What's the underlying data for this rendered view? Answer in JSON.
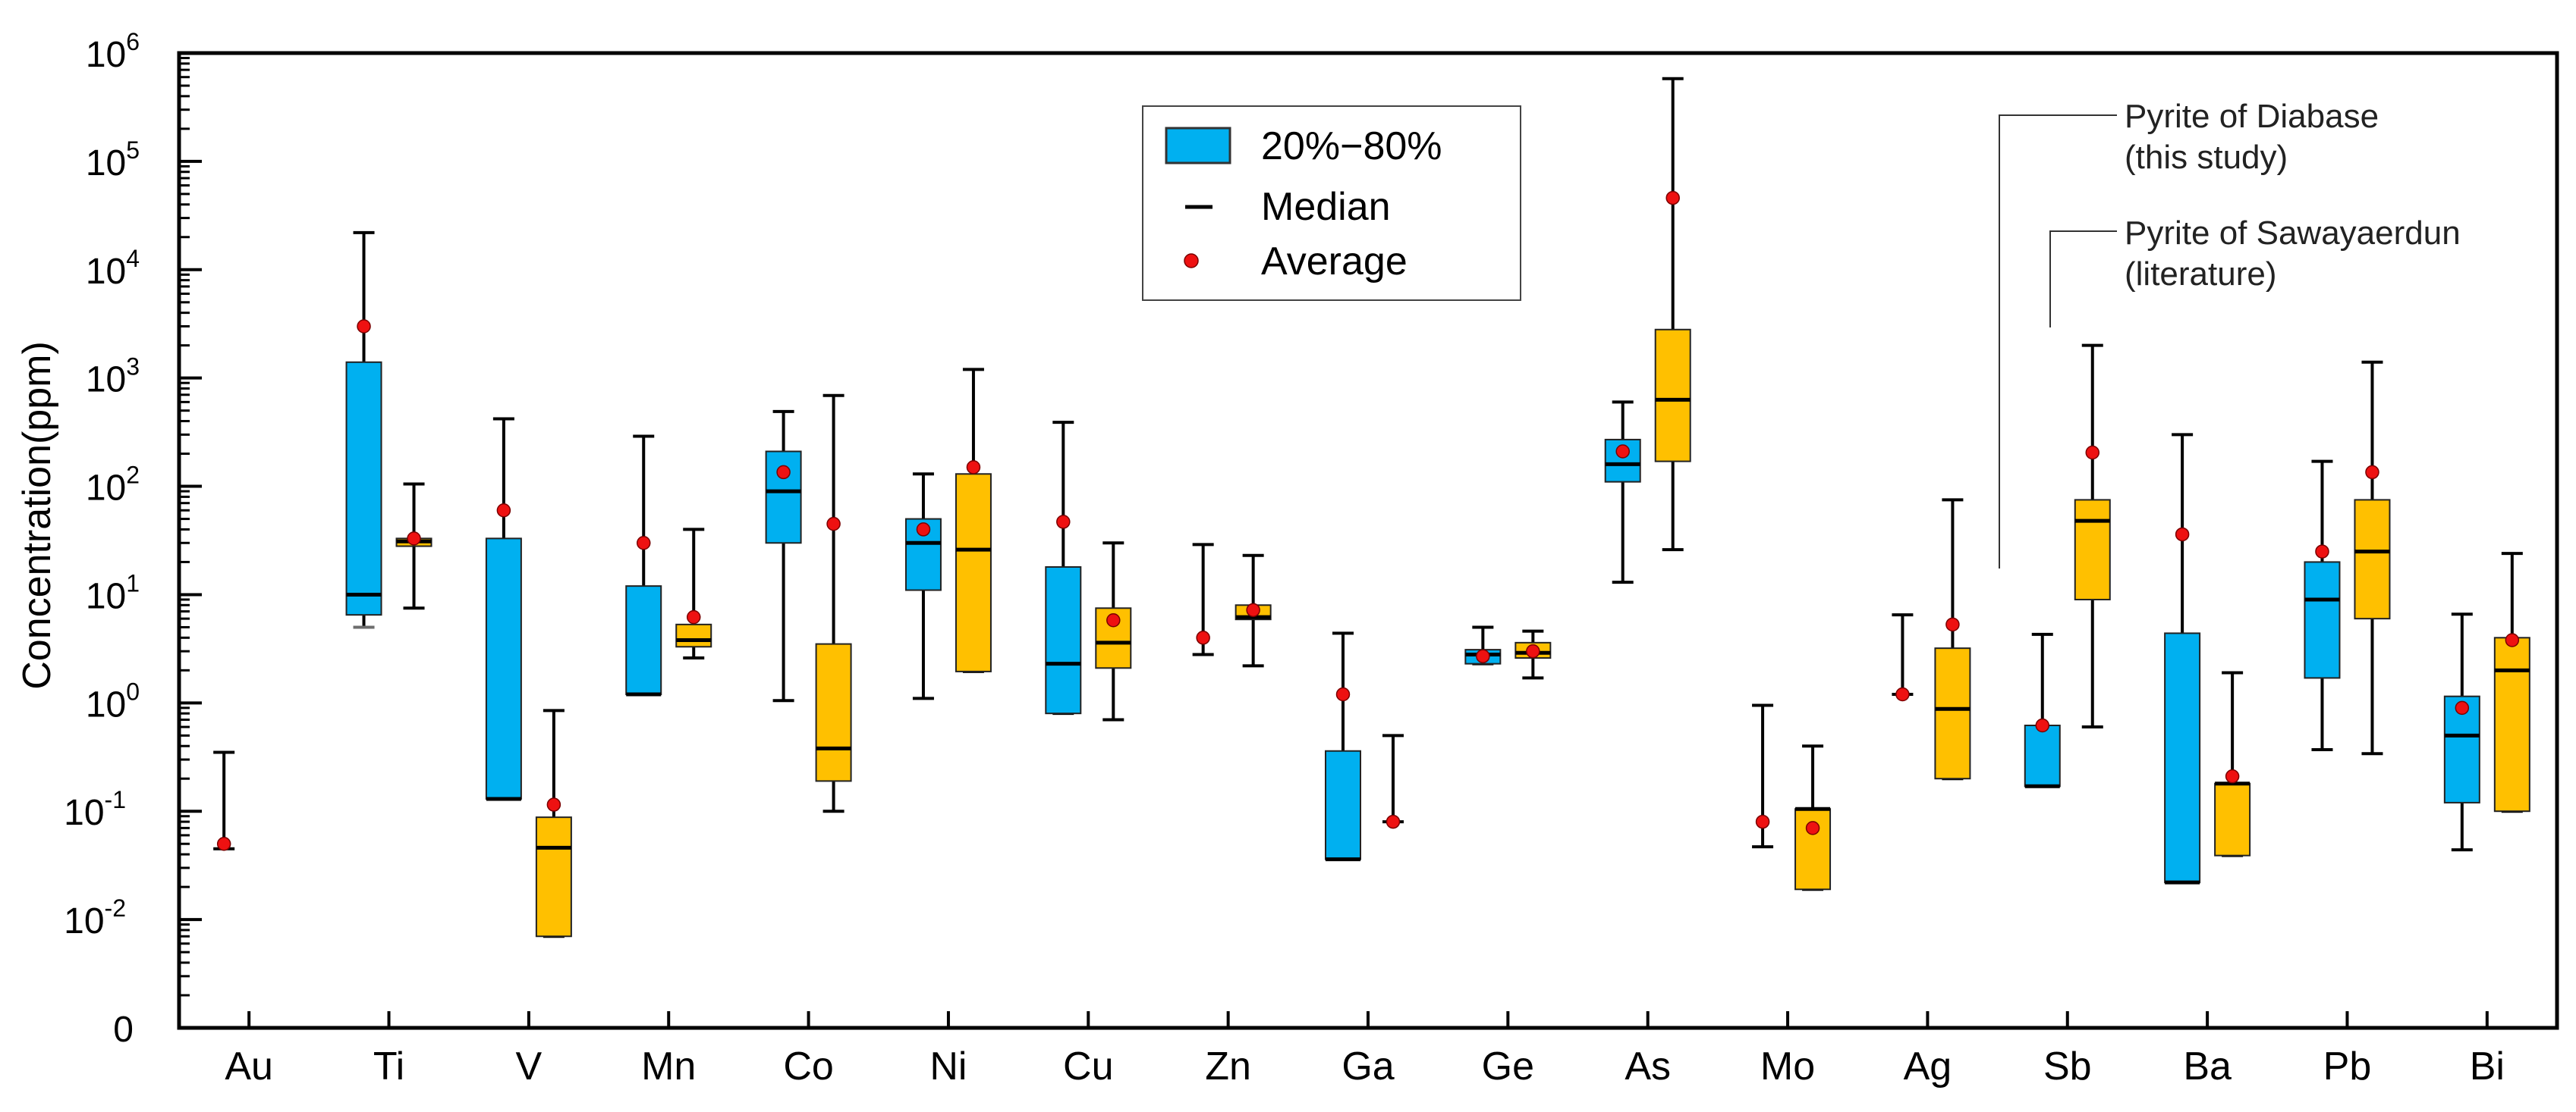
{
  "chart_data": {
    "type": "box",
    "ylabel": "Concentration(ppm)",
    "yscale": "log",
    "ylim": [
      0.001,
      1000000
    ],
    "y_ticks": [
      {
        "value": 0.001,
        "base": "0",
        "exp": ""
      },
      {
        "value": 0.01,
        "base": "10",
        "exp": "-2"
      },
      {
        "value": 0.1,
        "base": "10",
        "exp": "-1"
      },
      {
        "value": 1,
        "base": "10",
        "exp": "0"
      },
      {
        "value": 10,
        "base": "10",
        "exp": "1"
      },
      {
        "value": 100,
        "base": "10",
        "exp": "2"
      },
      {
        "value": 1000,
        "base": "10",
        "exp": "3"
      },
      {
        "value": 10000,
        "base": "10",
        "exp": "4"
      },
      {
        "value": 100000,
        "base": "10",
        "exp": "5"
      },
      {
        "value": 1000000,
        "base": "10",
        "exp": "6"
      }
    ],
    "categories": [
      "Au",
      "Ti",
      "V",
      "Mn",
      "Co",
      "Ni",
      "Cu",
      "Zn",
      "Ga",
      "Ge",
      "As",
      "Mo",
      "Ag",
      "Sb",
      "Ba",
      "Pb",
      "Bi"
    ],
    "series": [
      {
        "name": "Pyrite of Diabase (this study)",
        "color": "#00b0f0",
        "boxes": [
          {
            "category": "Au",
            "min": 0.045,
            "max": 0.35,
            "q1": null,
            "q3": null,
            "median": null,
            "mean": 0.05
          },
          {
            "category": "Ti",
            "min": 5,
            "max": 22000,
            "q1": 6.5,
            "q3": 1400,
            "median": 10,
            "mean": 3000
          },
          {
            "category": "V",
            "min": 0.13,
            "max": 420,
            "q1": 0.13,
            "q3": 33,
            "median": 0.13,
            "mean": 60
          },
          {
            "category": "Mn",
            "min": 1.2,
            "max": 290,
            "q1": 1.2,
            "q3": 12,
            "median": 1.2,
            "mean": 30
          },
          {
            "category": "Co",
            "min": 1.05,
            "max": 490,
            "q1": 30,
            "q3": 210,
            "median": 90,
            "mean": 135
          },
          {
            "category": "Ni",
            "min": 1.1,
            "max": 130,
            "q1": 11,
            "q3": 50,
            "median": 30,
            "mean": 40
          },
          {
            "category": "Cu",
            "min": 0.8,
            "max": 390,
            "q1": 0.8,
            "q3": 18,
            "median": 2.3,
            "mean": 47
          },
          {
            "category": "Zn",
            "min": 2.8,
            "max": 29,
            "q1": null,
            "q3": null,
            "median": null,
            "mean": 4
          },
          {
            "category": "Ga",
            "min": 0.036,
            "max": 4.4,
            "q1": 0.036,
            "q3": 0.36,
            "median": 0.036,
            "mean": 1.2
          },
          {
            "category": "Ge",
            "min": 2.3,
            "max": 5,
            "q1": 2.3,
            "q3": 3.1,
            "median": 2.8,
            "mean": 2.7
          },
          {
            "category": "As",
            "min": 13,
            "max": 600,
            "q1": 110,
            "q3": 270,
            "median": 160,
            "mean": 210
          },
          {
            "category": "Mo",
            "min": 0.047,
            "max": 0.95,
            "q1": null,
            "q3": null,
            "median": null,
            "mean": 0.08
          },
          {
            "category": "Ag",
            "min": 1.2,
            "max": 6.5,
            "q1": null,
            "q3": null,
            "median": null,
            "mean": 1.2
          },
          {
            "category": "Sb",
            "min": 0.17,
            "max": 4.3,
            "q1": 0.17,
            "q3": 0.62,
            "median": 0.17,
            "mean": 0.62
          },
          {
            "category": "Ba",
            "min": 0.022,
            "max": 300,
            "q1": 0.022,
            "q3": 4.4,
            "median": 0.022,
            "mean": 36
          },
          {
            "category": "Pb",
            "min": 0.37,
            "max": 170,
            "q1": 1.7,
            "q3": 20,
            "median": 9,
            "mean": 25
          },
          {
            "category": "Bi",
            "min": 0.044,
            "max": 6.6,
            "q1": 0.12,
            "q3": 1.15,
            "median": 0.5,
            "mean": 0.9
          }
        ]
      },
      {
        "name": "Pyrite of Sawayaerdun (literature)",
        "color": "#ffc000",
        "boxes": [
          {
            "category": "Ti",
            "min": 7.5,
            "max": 105,
            "q1": 28,
            "q3": 33,
            "median": 31,
            "mean": 33
          },
          {
            "category": "V",
            "min": 0.007,
            "max": 0.85,
            "q1": 0.007,
            "q3": 0.088,
            "median": 0.046,
            "mean": 0.115
          },
          {
            "category": "Mn",
            "min": 2.6,
            "max": 40,
            "q1": 3.3,
            "q3": 5.3,
            "median": 3.8,
            "mean": 6.2
          },
          {
            "category": "Co",
            "min": 0.1,
            "max": 690,
            "q1": 0.19,
            "q3": 3.5,
            "median": 0.38,
            "mean": 45
          },
          {
            "category": "Ni",
            "min": 1.95,
            "max": 1200,
            "q1": 1.95,
            "q3": 130,
            "median": 26,
            "mean": 150
          },
          {
            "category": "Cu",
            "min": 0.7,
            "max": 30,
            "q1": 2.1,
            "q3": 7.5,
            "median": 3.6,
            "mean": 5.8
          },
          {
            "category": "Zn",
            "min": 2.2,
            "max": 23,
            "q1": 5.9,
            "q3": 8,
            "median": 6.2,
            "mean": 7.2
          },
          {
            "category": "Ga",
            "min": 0.08,
            "max": 0.5,
            "q1": null,
            "q3": null,
            "median": null,
            "mean": 0.08
          },
          {
            "category": "Ge",
            "min": 1.7,
            "max": 4.6,
            "q1": 2.6,
            "q3": 3.6,
            "median": 2.9,
            "mean": 3
          },
          {
            "category": "As",
            "min": 26,
            "max": 580000,
            "q1": 170,
            "q3": 2800,
            "median": 630,
            "mean": 46000
          },
          {
            "category": "Mo",
            "min": 0.019,
            "max": 0.4,
            "q1": 0.019,
            "q3": 0.105,
            "median": 0.105,
            "mean": 0.07
          },
          {
            "category": "Ag",
            "min": 0.2,
            "max": 75,
            "q1": 0.2,
            "q3": 3.2,
            "median": 0.88,
            "mean": 5.3
          },
          {
            "category": "Sb",
            "min": 0.6,
            "max": 2000,
            "q1": 9,
            "q3": 75,
            "median": 48,
            "mean": 205
          },
          {
            "category": "Ba",
            "min": 0.039,
            "max": 1.9,
            "q1": 0.039,
            "q3": 0.18,
            "median": 0.18,
            "mean": 0.21
          },
          {
            "category": "Pb",
            "min": 0.34,
            "max": 1400,
            "q1": 6,
            "q3": 75,
            "median": 25,
            "mean": 135
          },
          {
            "category": "Bi",
            "min": 0.1,
            "max": 24,
            "q1": 0.1,
            "q3": 4,
            "median": 2,
            "mean": 3.8
          }
        ]
      }
    ],
    "legend": {
      "position": "top-center",
      "items": [
        {
          "label": "20%−80%",
          "symbol": "box"
        },
        {
          "label": "Median",
          "symbol": "line"
        },
        {
          "label": "Average",
          "symbol": "dot"
        }
      ]
    },
    "annotations": [
      {
        "text_line1": "Pyrite of Diabase",
        "text_line2": "(this study)",
        "target": "Sb"
      },
      {
        "text_line1": "Pyrite of Sawayaerdun",
        "text_line2": "(literature)",
        "target": "Sb"
      }
    ],
    "colors": {
      "blue": "#00b0f0",
      "orange": "#ffc000",
      "mean": "#ee1111",
      "whisker": "#000000",
      "ti_whisker": "#6d6d6d"
    }
  }
}
